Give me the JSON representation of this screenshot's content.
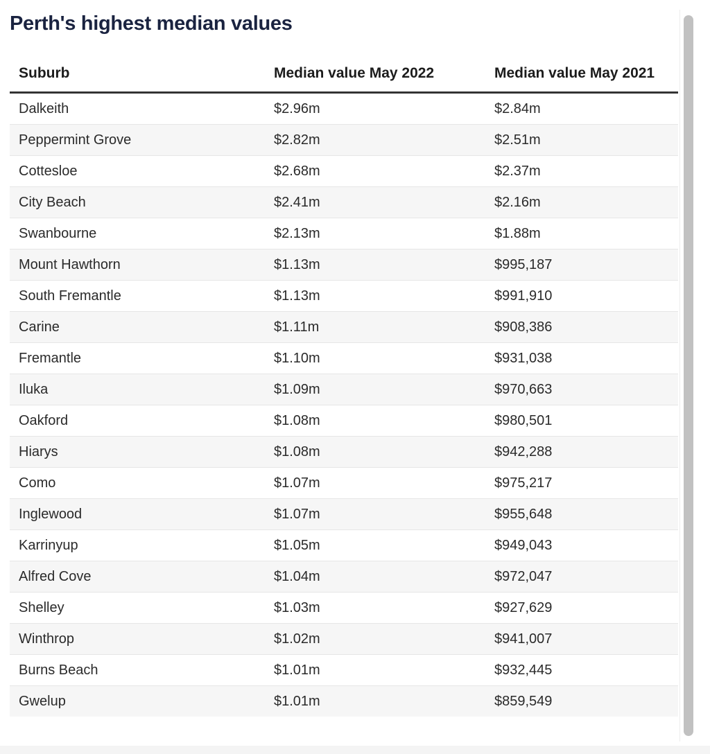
{
  "title": "Perth's highest median values",
  "chart_data": {
    "type": "table",
    "title": "Perth's highest median values",
    "columns": [
      "Suburb",
      "Median value May 2022",
      "Median value May 2021"
    ],
    "rows": [
      [
        "Dalkeith",
        "$2.96m",
        "$2.84m"
      ],
      [
        "Peppermint Grove",
        "$2.82m",
        "$2.51m"
      ],
      [
        "Cottesloe",
        "$2.68m",
        "$2.37m"
      ],
      [
        "City Beach",
        "$2.41m",
        "$2.16m"
      ],
      [
        "Swanbourne",
        "$2.13m",
        "$1.88m"
      ],
      [
        "Mount Hawthorn",
        "$1.13m",
        "$995,187"
      ],
      [
        "South Fremantle",
        "$1.13m",
        "$991,910"
      ],
      [
        "Carine",
        "$1.11m",
        "$908,386"
      ],
      [
        "Fremantle",
        "$1.10m",
        "$931,038"
      ],
      [
        "Iluka",
        "$1.09m",
        "$970,663"
      ],
      [
        "Oakford",
        "$1.08m",
        "$980,501"
      ],
      [
        "Hiarys",
        "$1.08m",
        "$942,288"
      ],
      [
        "Como",
        "$1.07m",
        "$975,217"
      ],
      [
        "Inglewood",
        "$1.07m",
        "$955,648"
      ],
      [
        "Karrinyup",
        "$1.05m",
        "$949,043"
      ],
      [
        "Alfred Cove",
        "$1.04m",
        "$972,047"
      ],
      [
        "Shelley",
        "$1.03m",
        "$927,629"
      ],
      [
        "Winthrop",
        "$1.02m",
        "$941,007"
      ],
      [
        "Burns Beach",
        "$1.01m",
        "$932,445"
      ],
      [
        "Gwelup",
        "$1.01m",
        "$859,549"
      ]
    ]
  },
  "colors": {
    "title": "#1a2340",
    "header_rule": "#333333",
    "row_alt": "#f6f6f6",
    "scrollbar_thumb": "#c1c1c1"
  }
}
